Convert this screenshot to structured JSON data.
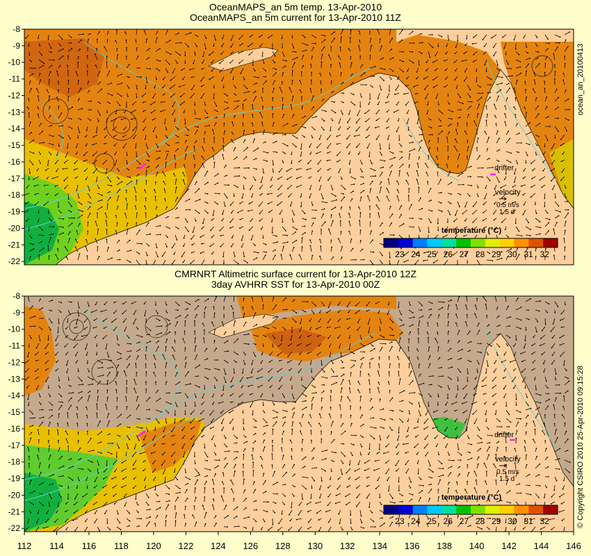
{
  "panels": [
    {
      "title_line1": "OceanMAPS_an 5m temp. 13-Apr-2010",
      "title_line2": "OceanMAPS_an 5m current for 13-Apr-2010 11Z",
      "side_label": "ocean_an_20100413",
      "drifter_label": "drifter",
      "velocity_label": "velocity",
      "velocity_scale_1": "0.5 m/s",
      "velocity_scale_2": "1.5 d",
      "colorbar_title": "temperature (°C)",
      "colorbar_ticks": [
        "23",
        "24",
        "25",
        "26",
        "27",
        "28",
        "29",
        "30",
        "31",
        "32"
      ],
      "y_ticks": [
        "-8",
        "-9",
        "-10",
        "-11",
        "-12",
        "-13",
        "-14",
        "-15",
        "-16",
        "-17",
        "-18",
        "-19",
        "-20",
        "-21",
        "-22"
      ]
    },
    {
      "title_line1": "CMRNRT Altimetric surface current for 13-Apr-2010 12Z",
      "title_line2": "3day AVHRR SST for 13-Apr-2010 00Z",
      "side_label": "© Copyright CSIRO 2010   25-Apr-2010 09:15:28",
      "drifter_label": "drifter",
      "velocity_label": "velocity",
      "velocity_scale_1": "0.5 m/s",
      "velocity_scale_2": "1.5 d",
      "colorbar_title": "temperature (°C)",
      "colorbar_ticks": [
        "23",
        "24",
        "25",
        "26",
        "27",
        "28",
        "29",
        "30",
        "31",
        "32"
      ],
      "y_ticks": [
        "-8",
        "-9",
        "-10",
        "-11",
        "-12",
        "-13",
        "-14",
        "-15",
        "-16",
        "-17",
        "-18",
        "-19",
        "-20",
        "-21",
        "-22"
      ]
    }
  ],
  "x_ticks": [
    "112",
    "114",
    "116",
    "118",
    "120",
    "122",
    "124",
    "126",
    "128",
    "130",
    "132",
    "134",
    "136",
    "138",
    "140",
    "142",
    "144",
    "146"
  ],
  "colors": {
    "background": "#ffffcc",
    "land": "#fdcf9c",
    "no_data": "#c4a98c",
    "bathymetry_contour": "#5fd0d0",
    "drifter": "#ff22ff",
    "colorbar": [
      "#000080",
      "#0000d0",
      "#0080ff",
      "#00c8ff",
      "#00e0a0",
      "#00c000",
      "#80e000",
      "#e0f000",
      "#ffd000",
      "#ff9000",
      "#e05000",
      "#a00000"
    ]
  }
}
